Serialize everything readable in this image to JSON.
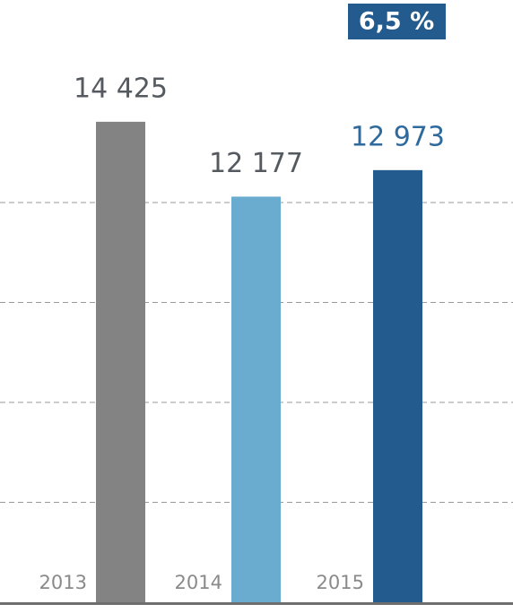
{
  "chart_data": {
    "type": "bar",
    "annotation": "6,5 %",
    "categories": [
      "2013",
      "2014",
      "2015"
    ],
    "values": [
      14425,
      12177,
      12973
    ],
    "value_labels": [
      "14 425",
      "12 177",
      "12 973"
    ],
    "colors": [
      "#838383",
      "#6aabd0",
      "#245b8f"
    ],
    "value_label_colors": [
      "#555a60",
      "#555a60",
      "#2f6a9c"
    ],
    "ylim": [
      0,
      18000
    ],
    "gridlines": [
      3000,
      6000,
      9000,
      12000
    ],
    "grid": true
  }
}
